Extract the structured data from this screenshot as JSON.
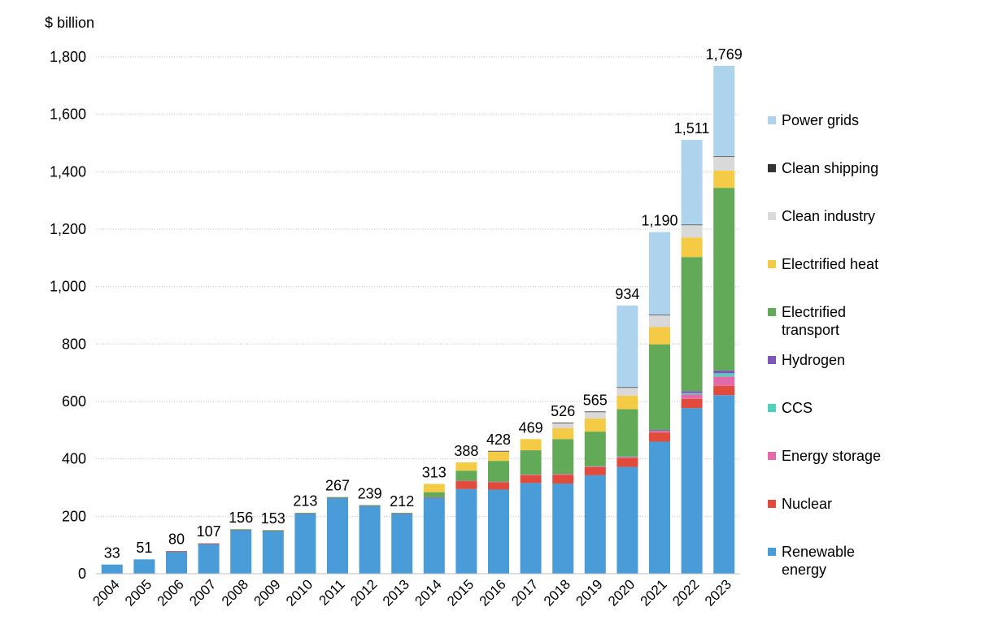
{
  "chart_data": {
    "type": "bar",
    "stacked": true,
    "unit_label": "$ billion",
    "categories": [
      "2004",
      "2005",
      "2006",
      "2007",
      "2008",
      "2009",
      "2010",
      "2011",
      "2012",
      "2013",
      "2014",
      "2015",
      "2016",
      "2017",
      "2018",
      "2019",
      "2020",
      "2021",
      "2022",
      "2023"
    ],
    "totals": [
      33,
      51,
      80,
      107,
      156,
      153,
      213,
      267,
      239,
      212,
      313,
      388,
      428,
      469,
      526,
      565,
      934,
      1190,
      1511,
      1769
    ],
    "total_labels": [
      "33",
      "51",
      "80",
      "107",
      "156",
      "153",
      "213",
      "267",
      "239",
      "212",
      "313",
      "388",
      "428",
      "469",
      "526",
      "565",
      "934",
      "1,190",
      "1,511",
      "1,769"
    ],
    "ylim": [
      0,
      1800
    ],
    "yticks": [
      0,
      200,
      400,
      600,
      800,
      1000,
      1200,
      1400,
      1600,
      1800
    ],
    "ytick_labels": [
      "0",
      "200",
      "400",
      "600",
      "800",
      "1,000",
      "1,200",
      "1,400",
      "1,600",
      "1,800"
    ],
    "grid": true,
    "legend_position": "right",
    "series": [
      {
        "name": "Renewable energy",
        "color": "#4a9cd8",
        "values": [
          32,
          50,
          78,
          105,
          153,
          150,
          210,
          265,
          237,
          210,
          265,
          295,
          293,
          316,
          314,
          343,
          372,
          460,
          577,
          622
        ]
      },
      {
        "name": "Nuclear",
        "color": "#e04b3c",
        "values": [
          0,
          0,
          1,
          1,
          1,
          1,
          1,
          1,
          1,
          1,
          2,
          28,
          26,
          27,
          30,
          28,
          32,
          32,
          32,
          32
        ]
      },
      {
        "name": "Energy storage",
        "color": "#e26aa8",
        "values": [
          0,
          0,
          0,
          0,
          0,
          0,
          0,
          0,
          0,
          0,
          0,
          1,
          1,
          2,
          3,
          3,
          4,
          7,
          16,
          33
        ]
      },
      {
        "name": "CCS",
        "color": "#4fd1c0",
        "values": [
          0,
          0,
          0,
          0,
          0,
          0,
          0,
          0,
          0,
          0,
          0,
          0,
          0,
          0,
          0,
          0,
          1,
          1,
          4,
          11
        ]
      },
      {
        "name": "Hydrogen",
        "color": "#7e58b8",
        "values": [
          0,
          0,
          0,
          0,
          0,
          0,
          0,
          0,
          0,
          0,
          0,
          0,
          0,
          0,
          0,
          0,
          0,
          1,
          7,
          10
        ]
      },
      {
        "name": "Electrified transport",
        "color": "#62a958",
        "values": [
          0,
          0,
          0,
          0,
          1,
          1,
          1,
          1,
          1,
          1,
          17,
          35,
          73,
          85,
          122,
          121,
          164,
          298,
          467,
          636
        ]
      },
      {
        "name": "Electrified heat",
        "color": "#f5cb45",
        "values": [
          0,
          0,
          0,
          0,
          0,
          0,
          0,
          0,
          0,
          0,
          29,
          29,
          33,
          39,
          38,
          46,
          47,
          60,
          68,
          60
        ]
      },
      {
        "name": "Clean industry",
        "color": "#d9d9d9",
        "values": [
          0,
          0,
          0,
          0,
          0,
          0,
          0,
          0,
          0,
          0,
          0,
          0,
          1,
          0,
          18,
          22,
          29,
          42,
          43,
          48
        ]
      },
      {
        "name": "Clean shipping",
        "color": "#333333",
        "values": [
          0,
          0,
          0,
          0,
          0,
          0,
          0,
          0,
          0,
          0,
          0,
          0,
          1,
          0,
          1,
          2,
          1,
          1,
          2,
          2
        ]
      },
      {
        "name": "Power grids",
        "color": "#aed3ec",
        "values": [
          0,
          0,
          0,
          0,
          0,
          0,
          0,
          0,
          0,
          0,
          0,
          0,
          0,
          0,
          0,
          0,
          284,
          288,
          295,
          315
        ]
      }
    ],
    "legend": [
      {
        "label": "Power grids",
        "color": "#aed3ec"
      },
      {
        "label": "Clean shipping",
        "color": "#333333"
      },
      {
        "label": "Clean industry",
        "color": "#d9d9d9"
      },
      {
        "label": "Electrified heat",
        "color": "#f5cb45"
      },
      {
        "label": "Electrified\ntransport",
        "color": "#62a958"
      },
      {
        "label": "Hydrogen",
        "color": "#7e58b8"
      },
      {
        "label": "CCS",
        "color": "#4fd1c0"
      },
      {
        "label": "Energy storage",
        "color": "#e26aa8"
      },
      {
        "label": "Nuclear",
        "color": "#e04b3c"
      },
      {
        "label": "Renewable\nenergy",
        "color": "#4a9cd8"
      }
    ]
  }
}
